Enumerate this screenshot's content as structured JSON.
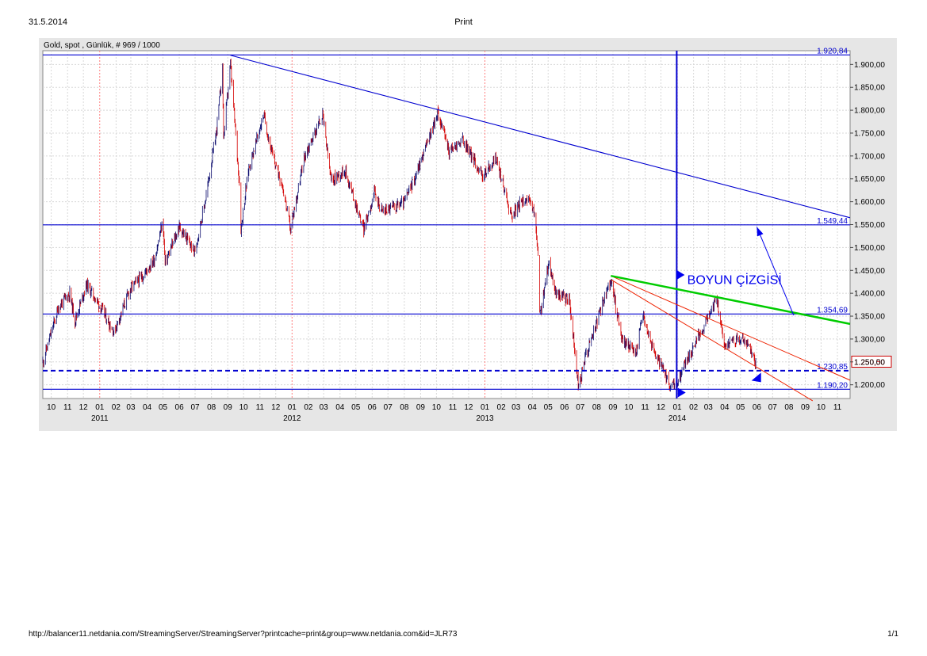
{
  "header": {
    "date": "31.5.2014",
    "title": "Print"
  },
  "footer": {
    "url": "http://balancer11.netdania.com/StreamingServer/StreamingServer?printcache=print&group=www.netdania.com&id=JLR73",
    "page": "1/1"
  },
  "colors": {
    "panel": "#e6e6e6",
    "plot_bg": "#ffffff",
    "grid": "#d8d8d8",
    "axis_text": "#000000",
    "candle_up": "#0b0b6e",
    "candle_down": "#d40000",
    "trend_blue": "#0000d0",
    "neck_green": "#00cc00",
    "channel_red": "#ee2200",
    "label_box_current": "#cc0000",
    "annotation_blue": "#0000ee"
  },
  "chart_data": {
    "type": "candlestick",
    "title": "Gold, spot , Günlük, # 969 / 1000",
    "y_range": [
      1170,
      1930
    ],
    "y_ticks": [
      1200,
      1250,
      1300,
      1350,
      1400,
      1450,
      1500,
      1550,
      1600,
      1650,
      1700,
      1750,
      1800,
      1850,
      1900
    ],
    "y_tick_labels": [
      "1.200,00",
      "1.250,00",
      "1.300,00",
      "1.350,00",
      "1.400,00",
      "1.450,00",
      "1.500,00",
      "1.550,00",
      "1.600,00",
      "1.650,00",
      "1.700,00",
      "1.750,00",
      "1.800,00",
      "1.850,00",
      "1.900,00"
    ],
    "x_range": [
      "2010-09-15",
      "2014-11-25"
    ],
    "x_month_ticks": [
      {
        "label": "10",
        "date": "2010-10-01"
      },
      {
        "label": "11",
        "date": "2010-11-01"
      },
      {
        "label": "12",
        "date": "2010-12-01"
      },
      {
        "label": "01",
        "date": "2011-01-01"
      },
      {
        "label": "02",
        "date": "2011-02-01"
      },
      {
        "label": "03",
        "date": "2011-03-01"
      },
      {
        "label": "04",
        "date": "2011-04-01"
      },
      {
        "label": "05",
        "date": "2011-05-01"
      },
      {
        "label": "06",
        "date": "2011-06-01"
      },
      {
        "label": "07",
        "date": "2011-07-01"
      },
      {
        "label": "08",
        "date": "2011-08-01"
      },
      {
        "label": "09",
        "date": "2011-09-01"
      },
      {
        "label": "10",
        "date": "2011-10-01"
      },
      {
        "label": "11",
        "date": "2011-11-01"
      },
      {
        "label": "12",
        "date": "2011-12-01"
      },
      {
        "label": "01",
        "date": "2012-01-01"
      },
      {
        "label": "02",
        "date": "2012-02-01"
      },
      {
        "label": "03",
        "date": "2012-03-01"
      },
      {
        "label": "04",
        "date": "2012-04-01"
      },
      {
        "label": "05",
        "date": "2012-05-01"
      },
      {
        "label": "06",
        "date": "2012-06-01"
      },
      {
        "label": "07",
        "date": "2012-07-01"
      },
      {
        "label": "08",
        "date": "2012-08-01"
      },
      {
        "label": "09",
        "date": "2012-09-01"
      },
      {
        "label": "10",
        "date": "2012-10-01"
      },
      {
        "label": "11",
        "date": "2012-11-01"
      },
      {
        "label": "12",
        "date": "2012-12-01"
      },
      {
        "label": "01",
        "date": "2013-01-01"
      },
      {
        "label": "02",
        "date": "2013-02-01"
      },
      {
        "label": "03",
        "date": "2013-03-01"
      },
      {
        "label": "04",
        "date": "2013-04-01"
      },
      {
        "label": "05",
        "date": "2013-05-01"
      },
      {
        "label": "06",
        "date": "2013-06-01"
      },
      {
        "label": "07",
        "date": "2013-07-01"
      },
      {
        "label": "08",
        "date": "2013-08-01"
      },
      {
        "label": "09",
        "date": "2013-09-01"
      },
      {
        "label": "10",
        "date": "2013-10-01"
      },
      {
        "label": "11",
        "date": "2013-11-01"
      },
      {
        "label": "12",
        "date": "2013-12-01"
      },
      {
        "label": "01",
        "date": "2014-01-01"
      },
      {
        "label": "02",
        "date": "2014-02-01"
      },
      {
        "label": "03",
        "date": "2014-03-01"
      },
      {
        "label": "04",
        "date": "2014-04-01"
      },
      {
        "label": "05",
        "date": "2014-05-01"
      },
      {
        "label": "06",
        "date": "2014-06-01"
      },
      {
        "label": "07",
        "date": "2014-07-01"
      },
      {
        "label": "08",
        "date": "2014-08-01"
      },
      {
        "label": "09",
        "date": "2014-09-01"
      },
      {
        "label": "10",
        "date": "2014-10-01"
      },
      {
        "label": "11",
        "date": "2014-11-01"
      }
    ],
    "x_year_labels": [
      {
        "label": "2011",
        "date": "2011-01-01"
      },
      {
        "label": "2012",
        "date": "2012-01-01"
      },
      {
        "label": "2013",
        "date": "2013-01-01"
      },
      {
        "label": "2014",
        "date": "2014-01-01"
      }
    ],
    "price_path": [
      [
        "2010-09-15",
        1250
      ],
      [
        "2010-10-15",
        1370
      ],
      [
        "2010-11-05",
        1400
      ],
      [
        "2010-11-15",
        1340
      ],
      [
        "2010-12-07",
        1420
      ],
      [
        "2011-01-05",
        1365
      ],
      [
        "2011-01-28",
        1315
      ],
      [
        "2011-02-28",
        1410
      ],
      [
        "2011-03-25",
        1440
      ],
      [
        "2011-04-15",
        1475
      ],
      [
        "2011-05-01",
        1560
      ],
      [
        "2011-05-05",
        1465
      ],
      [
        "2011-06-01",
        1545
      ],
      [
        "2011-06-30",
        1490
      ],
      [
        "2011-07-20",
        1600
      ],
      [
        "2011-08-10",
        1750
      ],
      [
        "2011-08-22",
        1890
      ],
      [
        "2011-08-24",
        1740
      ],
      [
        "2011-09-06",
        1900
      ],
      [
        "2011-09-23",
        1640
      ],
      [
        "2011-09-26",
        1540
      ],
      [
        "2011-10-10",
        1670
      ],
      [
        "2011-11-08",
        1790
      ],
      [
        "2011-11-25",
        1700
      ],
      [
        "2011-12-13",
        1640
      ],
      [
        "2011-12-29",
        1540
      ],
      [
        "2012-01-25",
        1700
      ],
      [
        "2012-02-28",
        1790
      ],
      [
        "2012-03-15",
        1645
      ],
      [
        "2012-04-10",
        1670
      ],
      [
        "2012-05-16",
        1540
      ],
      [
        "2012-06-05",
        1620
      ],
      [
        "2012-06-20",
        1580
      ],
      [
        "2012-07-15",
        1590
      ],
      [
        "2012-08-01",
        1600
      ],
      [
        "2012-08-20",
        1650
      ],
      [
        "2012-10-04",
        1795
      ],
      [
        "2012-10-25",
        1710
      ],
      [
        "2012-11-20",
        1735
      ],
      [
        "2012-12-28",
        1655
      ],
      [
        "2013-01-22",
        1695
      ],
      [
        "2013-02-20",
        1570
      ],
      [
        "2013-03-20",
        1610
      ],
      [
        "2013-04-05",
        1575
      ],
      [
        "2013-04-12",
        1480
      ],
      [
        "2013-04-15",
        1350
      ],
      [
        "2013-05-03",
        1470
      ],
      [
        "2013-05-15",
        1400
      ],
      [
        "2013-06-10",
        1385
      ],
      [
        "2013-06-28",
        1190
      ],
      [
        "2013-07-10",
        1260
      ],
      [
        "2013-08-28",
        1430
      ],
      [
        "2013-09-18",
        1300
      ],
      [
        "2013-10-15",
        1270
      ],
      [
        "2013-10-28",
        1355
      ],
      [
        "2013-11-15",
        1280
      ],
      [
        "2013-12-19",
        1195
      ],
      [
        "2013-12-31",
        1200
      ],
      [
        "2014-01-15",
        1245
      ],
      [
        "2014-02-25",
        1340
      ],
      [
        "2014-03-17",
        1390
      ],
      [
        "2014-03-31",
        1285
      ],
      [
        "2014-04-20",
        1300
      ],
      [
        "2014-05-10",
        1295
      ],
      [
        "2014-05-30",
        1250.5
      ]
    ],
    "horizontal_levels": [
      {
        "value": 1920.84,
        "label": "1.920,84"
      },
      {
        "value": 1549.44,
        "label": "1.549,44"
      },
      {
        "value": 1354.69,
        "label": "1.354,69"
      },
      {
        "value": 1230.85,
        "label": "1.230,85"
      },
      {
        "value": 1190.2,
        "label": "1.190,20"
      }
    ],
    "current_price": {
      "value": 1250.5,
      "label": "1.250,50"
    },
    "main_trendline": {
      "from": [
        "2011-09-06",
        1920
      ],
      "to": [
        "2014-11-25",
        1565
      ]
    },
    "vertical_line_date": "2013-12-31",
    "neckline": {
      "label": "BOYUN ÇİZGİSİ",
      "from": [
        "2013-08-28",
        1438
      ],
      "to": [
        "2014-11-25",
        1333
      ]
    },
    "channel_upper": {
      "from": [
        "2013-08-28",
        1438
      ],
      "to": [
        "2014-11-25",
        1210
      ]
    },
    "channel_lower": {
      "from": [
        "2013-08-28",
        1430
      ],
      "to": [
        "2014-09-15",
        1165
      ]
    },
    "annotation_arrow": {
      "from": [
        "2014-08-10",
        1352
      ],
      "to": [
        "2014-06-01",
        1545
      ]
    },
    "arrow_markers": [
      {
        "date": "2013-12-31",
        "value": 1440,
        "dir": "right"
      },
      {
        "date": "2014-06-03",
        "value": 1216,
        "dir": "upleft"
      },
      {
        "date": "2014-01-02",
        "value": 1183,
        "dir": "right"
      }
    ]
  }
}
